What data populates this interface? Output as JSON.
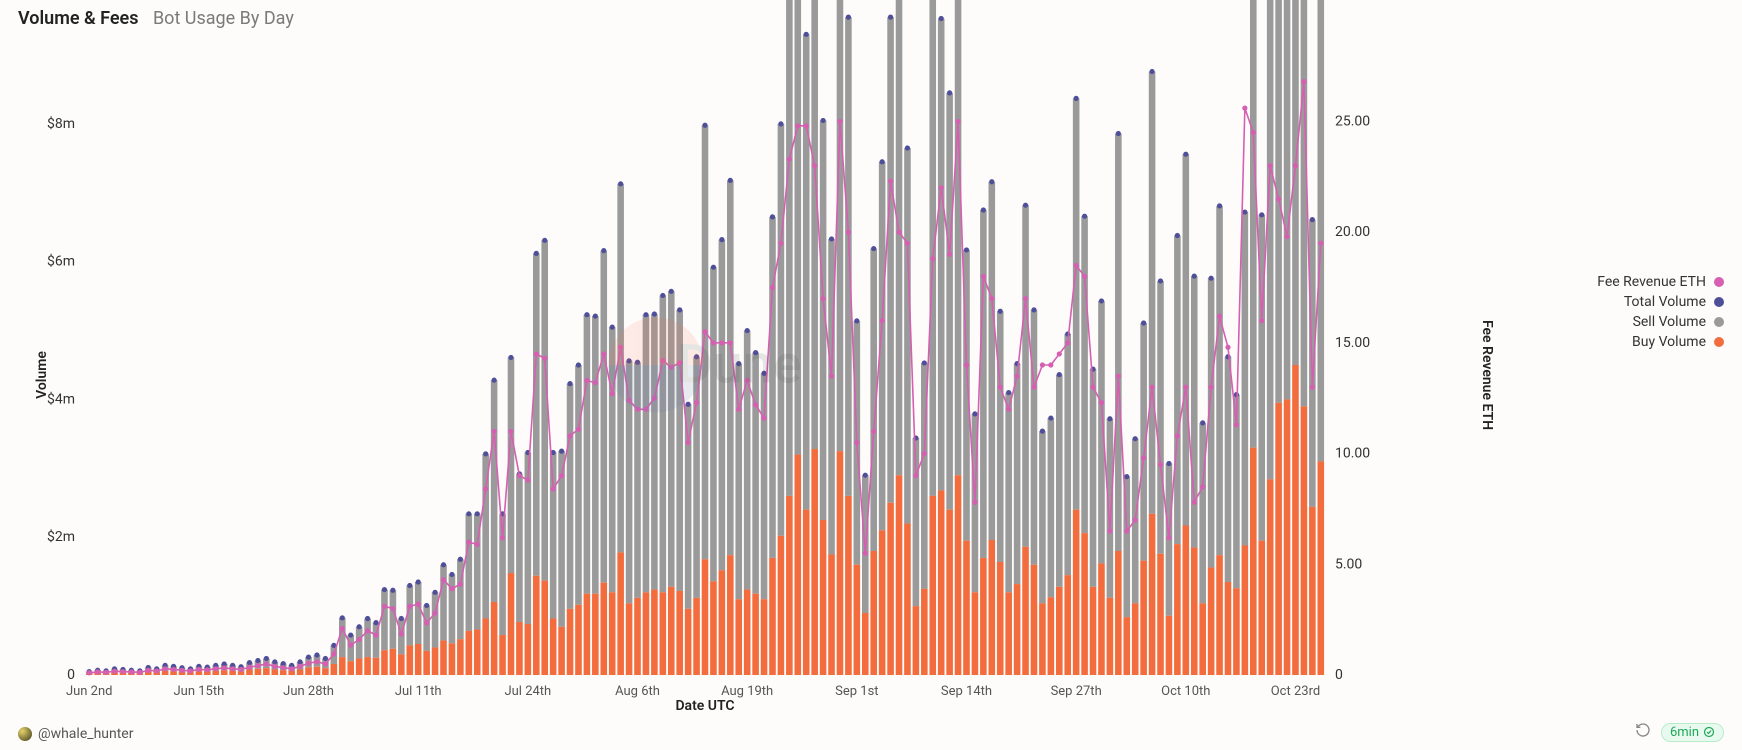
{
  "header": {
    "title": "Volume & Fees",
    "subtitle": "Bot Usage By Day"
  },
  "axes": {
    "x_label": "Date UTC",
    "y_left_label": "Volume",
    "y_right_label": "Fee Revenue ETH",
    "y_left": {
      "min": 0,
      "max": 9000000,
      "ticks": [
        0,
        2000000,
        4000000,
        6000000,
        8000000
      ],
      "tick_labels": [
        "0",
        "$2m",
        "$4m",
        "$6m",
        "$8m"
      ]
    },
    "y_right": {
      "min": 0,
      "max": 28,
      "ticks": [
        0,
        5,
        10,
        15,
        20,
        25
      ],
      "tick_labels": [
        "0",
        "5.00",
        "10.00",
        "15.00",
        "20.00",
        "25.00"
      ]
    },
    "x_ticks": [
      "Jun 2nd",
      "Jun 15th",
      "Jun 28th",
      "Jul 11th",
      "Jul 24th",
      "Aug 6th",
      "Aug 19th",
      "Sep 1st",
      "Sep 14th",
      "Sep 27th",
      "Oct 10th",
      "Oct 23rd"
    ],
    "x_tick_step": 13
  },
  "legend": [
    {
      "label": "Fee Revenue ETH",
      "color": "#d65fb2"
    },
    {
      "label": "Total Volume",
      "color": "#4f4f99"
    },
    {
      "label": "Sell Volume",
      "color": "#9a9a9a"
    },
    {
      "label": "Buy Volume",
      "color": "#f26c3d"
    }
  ],
  "style": {
    "bar_buy_color": "#f26c3d",
    "bar_sell_color": "#9a9a9a",
    "total_dot_color": "#4f4f99",
    "line_color": "#d65fb2",
    "line_dot_color": "#d65fb2",
    "line_width": 1.6,
    "dot_radius": 2.6,
    "bar_gap_ratio": 0.22,
    "background": "#fdfcfb",
    "tick_font_size": 13
  },
  "watermark": {
    "text": "Dune"
  },
  "footer": {
    "author": "@whale_hunter",
    "age": "6min"
  },
  "series": {
    "buy": [
      20,
      30,
      25,
      40,
      35,
      30,
      25,
      50,
      40,
      60,
      55,
      45,
      40,
      55,
      50,
      60,
      70,
      60,
      50,
      80,
      90,
      100,
      80,
      70,
      60,
      80,
      110,
      120,
      100,
      160,
      260,
      200,
      240,
      260,
      250,
      360,
      380,
      300,
      430,
      450,
      350,
      400,
      500,
      460,
      520,
      640,
      660,
      820,
      1060,
      580,
      1480,
      770,
      740,
      1440,
      1370,
      820,
      700,
      960,
      1020,
      1180,
      1180,
      1340,
      1200,
      1780,
      1040,
      1120,
      1200,
      1240,
      1200,
      1280,
      1220,
      960,
      1120,
      1680,
      1360,
      1520,
      1740,
      1100,
      1240,
      1180,
      1100,
      1700,
      2020,
      2600,
      3200,
      2400,
      3280,
      2250,
      1750,
      3250,
      2600,
      1600,
      900,
      1800,
      2100,
      2500,
      2900,
      2200,
      1000,
      1250,
      2600,
      2680,
      2400,
      2900,
      1950,
      1200,
      1700,
      1960,
      1640,
      1200,
      1320,
      1860,
      1600,
      1040,
      1130,
      1280,
      1450,
      2400,
      2060,
      1280,
      1620,
      1120,
      1800,
      840,
      1040,
      1660,
      2340,
      1760,
      860,
      1900,
      2170,
      1850,
      1040,
      1560,
      1740,
      1350,
      1260,
      1880,
      3300,
      1950,
      2840,
      3950,
      4000,
      4500,
      3900,
      2440,
      3100
    ],
    "sell": [
      30,
      40,
      35,
      50,
      45,
      40,
      35,
      60,
      50,
      80,
      70,
      60,
      50,
      70,
      65,
      80,
      90,
      80,
      70,
      100,
      120,
      140,
      110,
      95,
      80,
      110,
      150,
      170,
      140,
      270,
      570,
      380,
      460,
      560,
      510,
      880,
      850,
      520,
      870,
      900,
      660,
      800,
      1100,
      1000,
      1160,
      1700,
      1680,
      2390,
      3220,
      1760,
      3130,
      2150,
      2490,
      4680,
      4940,
      2410,
      2550,
      3270,
      3480,
      4050,
      4030,
      4820,
      3850,
      5350,
      3520,
      3420,
      4030,
      4000,
      4310,
      4290,
      4080,
      2970,
      3500,
      6300,
      4560,
      4800,
      5440,
      3420,
      3760,
      3500,
      3280,
      4950,
      5980,
      7640,
      8450,
      6900,
      8650,
      5800,
      4580,
      8430,
      6950,
      3540,
      2000,
      4390,
      5350,
      7050,
      7500,
      5450,
      2440,
      3280,
      7310,
      6850,
      6050,
      7100,
      4220,
      2590,
      5050,
      5200,
      3640,
      2900,
      3200,
      4960,
      3700,
      2500,
      2600,
      3080,
      3500,
      5970,
      4600,
      3160,
      3810,
      2600,
      6060,
      2040,
      2390,
      3450,
      6420,
      3960,
      2210,
      4480,
      5390,
      3940,
      2620,
      4200,
      5070,
      3270,
      2810,
      4840,
      9700,
      4730,
      8830,
      9930,
      8120,
      11020,
      9390,
      4170,
      7250
    ],
    "fee": [
      0.1,
      0.14,
      0.12,
      0.17,
      0.15,
      0.14,
      0.12,
      0.21,
      0.18,
      0.28,
      0.25,
      0.21,
      0.18,
      0.25,
      0.23,
      0.28,
      0.32,
      0.28,
      0.25,
      0.35,
      0.42,
      0.5,
      0.39,
      0.33,
      0.28,
      0.39,
      0.53,
      0.6,
      0.5,
      0.95,
      2.1,
      1.35,
      1.6,
      2.0,
      1.8,
      3.1,
      3.0,
      1.85,
      3.1,
      3.2,
      2.35,
      2.8,
      4.3,
      3.9,
      4.1,
      6.0,
      5.9,
      8.4,
      11.0,
      6.2,
      11.0,
      9.0,
      8.8,
      14.5,
      14.3,
      8.4,
      9.0,
      10.8,
      11.1,
      13.3,
      13.2,
      14.5,
      12.7,
      14.8,
      12.4,
      12.0,
      12.0,
      12.5,
      14.2,
      13.9,
      14.1,
      10.5,
      12.3,
      15.5,
      15.0,
      15.0,
      15.0,
      12.0,
      13.3,
      12.2,
      11.6,
      17.5,
      19.5,
      23.3,
      24.8,
      24.8,
      23.0,
      17.0,
      13.5,
      25.0,
      20.0,
      10.5,
      5.5,
      11.0,
      16.0,
      22.3,
      20.0,
      19.5,
      9.0,
      10.0,
      18.8,
      22.0,
      19.0,
      25.0,
      14.0,
      7.8,
      18.0,
      17.0,
      13.0,
      12.0,
      13.5,
      17.0,
      13.0,
      14.0,
      14.0,
      14.5,
      15.0,
      18.5,
      18.0,
      13.0,
      12.3,
      6.5,
      13.5,
      6.5,
      7.0,
      9.8,
      13.0,
      9.5,
      6.2,
      10.8,
      13.0,
      7.8,
      8.5,
      13.0,
      16.2,
      14.8,
      11.3,
      25.6,
      24.5,
      16.0,
      23.0,
      21.5,
      19.8,
      23.0,
      26.8,
      13.0,
      19.5
    ]
  }
}
